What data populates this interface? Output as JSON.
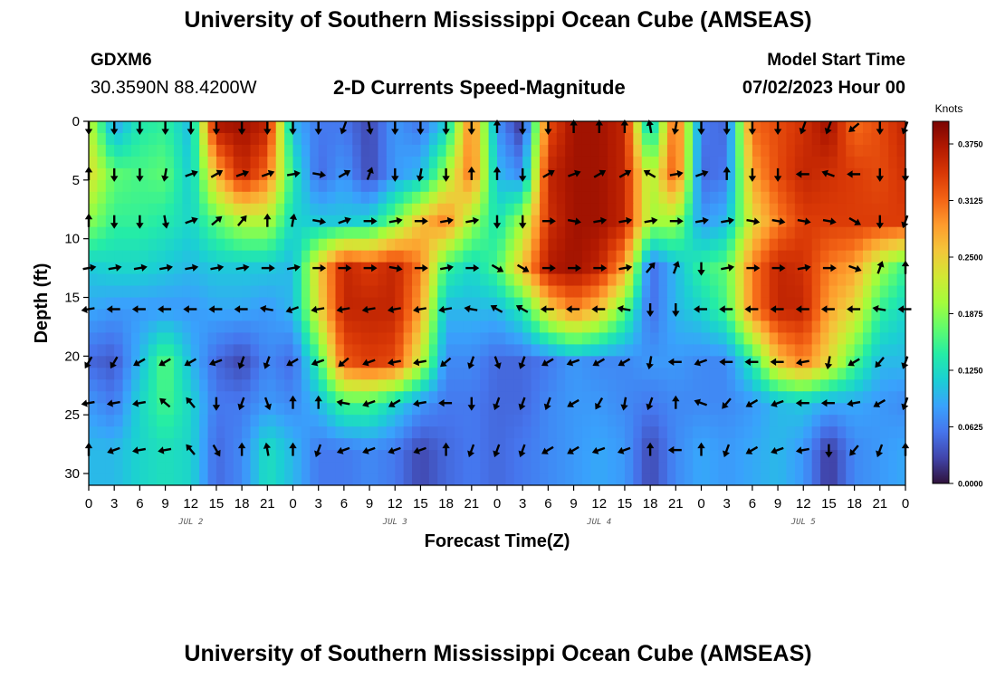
{
  "header": {
    "title": "University of Southern Mississippi Ocean Cube (AMSEAS)",
    "station": "GDXM6",
    "coords": "30.3590N  88.4200W",
    "subtitle": "2-D Currents Speed-Magnitude",
    "start_label": "Model Start Time",
    "start_value": "07/02/2023 Hour 00"
  },
  "footer": {
    "title": "University of Southern Mississippi Ocean Cube (AMSEAS)"
  },
  "colors": {
    "scale": [
      "#30123b",
      "#4145ab",
      "#4675ed",
      "#39a2fc",
      "#1bcfd4",
      "#24eca6",
      "#61fc6c",
      "#a4fc3b",
      "#d1e834",
      "#f3c63a",
      "#fe9b2d",
      "#f36315",
      "#d93806",
      "#b11901",
      "#7a0402"
    ],
    "arrow": "#000000",
    "axis": "#000000"
  },
  "chart_data": {
    "type": "heatmap",
    "title": "2-D Currents Speed-Magnitude",
    "xlabel": "Forecast Time(Z)",
    "ylabel": "Depth (ft)",
    "x_ticks": [
      "0",
      "3",
      "6",
      "9",
      "12",
      "15",
      "18",
      "21",
      "0",
      "3",
      "6",
      "9",
      "12",
      "15",
      "18",
      "21",
      "0",
      "3",
      "6",
      "9",
      "12",
      "15",
      "18",
      "21",
      "0",
      "3",
      "6",
      "9",
      "12",
      "15",
      "18",
      "21",
      "0"
    ],
    "x_range_hours": [
      0,
      96
    ],
    "y_ticks": [
      "0",
      "5",
      "10",
      "15",
      "20",
      "25",
      "30"
    ],
    "ylim": [
      0,
      31
    ],
    "date_labels": [
      "JUL 2",
      "JUL 3",
      "JUL 4",
      "JUL 5"
    ],
    "date_label_hours": [
      12,
      36,
      60,
      84
    ],
    "colorbar": {
      "unit": "Knots",
      "ticks": [
        "0.3750",
        "0.3125",
        "0.2500",
        "0.1875",
        "0.1250",
        "0.0625",
        "0.0000"
      ],
      "range": [
        0,
        0.4
      ]
    },
    "arrow_depths_ft": [
      0.5,
      4.5,
      8.5,
      12.5,
      16,
      20.5,
      24,
      28
    ],
    "arrow_hours": [
      0,
      3,
      6,
      9,
      12,
      15,
      18,
      21,
      24,
      27,
      30,
      33,
      36,
      39,
      42,
      45,
      48,
      51,
      54,
      57,
      60,
      63,
      66,
      69,
      72,
      75,
      78,
      81,
      84,
      87,
      90,
      93,
      96
    ],
    "speed_knots": [
      [
        0.22,
        0.09,
        0.14,
        0.15,
        0.1,
        0.37,
        0.38,
        0.36,
        0.1,
        0.06,
        0.06,
        0.03,
        0.08,
        0.06,
        0.12,
        0.31,
        0.08,
        0.02,
        0.33,
        0.38,
        0.38,
        0.36,
        0.1,
        0.33,
        0.06,
        0.05,
        0.31,
        0.33,
        0.35,
        0.38,
        0.31,
        0.33,
        0.36
      ],
      [
        0.24,
        0.17,
        0.16,
        0.17,
        0.11,
        0.27,
        0.36,
        0.31,
        0.14,
        0.05,
        0.08,
        0.03,
        0.08,
        0.1,
        0.2,
        0.31,
        0.1,
        0.07,
        0.36,
        0.38,
        0.38,
        0.36,
        0.2,
        0.33,
        0.05,
        0.06,
        0.28,
        0.33,
        0.36,
        0.35,
        0.34,
        0.33,
        0.35
      ],
      [
        0.19,
        0.15,
        0.15,
        0.14,
        0.12,
        0.17,
        0.21,
        0.21,
        0.12,
        0.11,
        0.11,
        0.12,
        0.18,
        0.26,
        0.3,
        0.2,
        0.13,
        0.2,
        0.35,
        0.38,
        0.38,
        0.36,
        0.2,
        0.2,
        0.08,
        0.1,
        0.24,
        0.3,
        0.34,
        0.34,
        0.34,
        0.34,
        0.34
      ],
      [
        0.11,
        0.12,
        0.12,
        0.11,
        0.1,
        0.11,
        0.11,
        0.11,
        0.1,
        0.25,
        0.36,
        0.34,
        0.36,
        0.3,
        0.15,
        0.12,
        0.16,
        0.26,
        0.37,
        0.38,
        0.36,
        0.28,
        0.05,
        0.1,
        0.15,
        0.17,
        0.3,
        0.36,
        0.35,
        0.3,
        0.28,
        0.2,
        0.15
      ],
      [
        0.09,
        0.08,
        0.08,
        0.08,
        0.08,
        0.09,
        0.09,
        0.08,
        0.1,
        0.24,
        0.36,
        0.36,
        0.36,
        0.28,
        0.1,
        0.1,
        0.1,
        0.14,
        0.25,
        0.3,
        0.26,
        0.17,
        0.05,
        0.1,
        0.12,
        0.16,
        0.3,
        0.36,
        0.36,
        0.28,
        0.24,
        0.15,
        0.12
      ],
      [
        0.05,
        0.04,
        0.1,
        0.17,
        0.1,
        0.05,
        0.03,
        0.07,
        0.05,
        0.15,
        0.32,
        0.34,
        0.33,
        0.22,
        0.07,
        0.07,
        0.05,
        0.05,
        0.06,
        0.08,
        0.07,
        0.07,
        0.08,
        0.08,
        0.07,
        0.07,
        0.14,
        0.26,
        0.3,
        0.24,
        0.16,
        0.1,
        0.1
      ],
      [
        0.08,
        0.06,
        0.12,
        0.16,
        0.12,
        0.06,
        0.06,
        0.08,
        0.07,
        0.1,
        0.16,
        0.16,
        0.12,
        0.08,
        0.06,
        0.06,
        0.05,
        0.05,
        0.07,
        0.08,
        0.08,
        0.07,
        0.06,
        0.07,
        0.07,
        0.07,
        0.08,
        0.1,
        0.11,
        0.09,
        0.09,
        0.08,
        0.07
      ],
      [
        0.1,
        0.1,
        0.12,
        0.13,
        0.12,
        0.05,
        0.07,
        0.13,
        0.1,
        0.06,
        0.06,
        0.07,
        0.06,
        0.03,
        0.05,
        0.06,
        0.05,
        0.06,
        0.07,
        0.08,
        0.09,
        0.08,
        0.03,
        0.07,
        0.09,
        0.08,
        0.09,
        0.1,
        0.08,
        0.02,
        0.07,
        0.08,
        0.09
      ]
    ],
    "direction_deg": [
      [
        180,
        180,
        180,
        180,
        180,
        180,
        180,
        180,
        180,
        180,
        200,
        170,
        180,
        180,
        180,
        180,
        0,
        180,
        180,
        0,
        0,
        0,
        350,
        190,
        180,
        180,
        180,
        180,
        200,
        200,
        230,
        180,
        200
      ],
      [
        0,
        180,
        180,
        190,
        70,
        60,
        70,
        70,
        80,
        100,
        60,
        20,
        180,
        190,
        180,
        0,
        0,
        180,
        60,
        70,
        60,
        60,
        300,
        80,
        70,
        0,
        180,
        180,
        270,
        290,
        270,
        180,
        180
      ],
      [
        0,
        180,
        180,
        170,
        70,
        50,
        40,
        0,
        10,
        100,
        70,
        90,
        80,
        90,
        80,
        80,
        180,
        180,
        90,
        100,
        80,
        80,
        80,
        90,
        80,
        80,
        100,
        100,
        100,
        100,
        120,
        180,
        200
      ],
      [
        80,
        80,
        80,
        80,
        80,
        80,
        80,
        90,
        80,
        90,
        90,
        90,
        100,
        90,
        80,
        90,
        120,
        120,
        90,
        90,
        90,
        80,
        40,
        20,
        180,
        80,
        90,
        90,
        80,
        90,
        110,
        20,
        0
      ],
      [
        260,
        270,
        270,
        270,
        270,
        270,
        270,
        280,
        250,
        260,
        260,
        260,
        260,
        260,
        260,
        280,
        300,
        300,
        270,
        270,
        270,
        280,
        180,
        180,
        270,
        270,
        270,
        270,
        270,
        270,
        270,
        280,
        270
      ],
      [
        210,
        210,
        240,
        240,
        240,
        250,
        200,
        200,
        240,
        250,
        230,
        250,
        260,
        260,
        230,
        200,
        160,
        200,
        240,
        250,
        240,
        240,
        190,
        270,
        250,
        270,
        270,
        270,
        260,
        190,
        240,
        220,
        200
      ],
      [
        260,
        260,
        260,
        310,
        320,
        180,
        200,
        160,
        0,
        0,
        280,
        250,
        240,
        260,
        270,
        180,
        200,
        200,
        200,
        240,
        210,
        190,
        200,
        0,
        290,
        220,
        240,
        250,
        270,
        270,
        260,
        240,
        200
      ],
      [
        0,
        250,
        260,
        260,
        320,
        150,
        0,
        350,
        0,
        200,
        250,
        250,
        250,
        250,
        0,
        200,
        200,
        200,
        240,
        240,
        250,
        250,
        0,
        270,
        0,
        200,
        240,
        250,
        260,
        180,
        220,
        200,
        0
      ]
    ]
  }
}
